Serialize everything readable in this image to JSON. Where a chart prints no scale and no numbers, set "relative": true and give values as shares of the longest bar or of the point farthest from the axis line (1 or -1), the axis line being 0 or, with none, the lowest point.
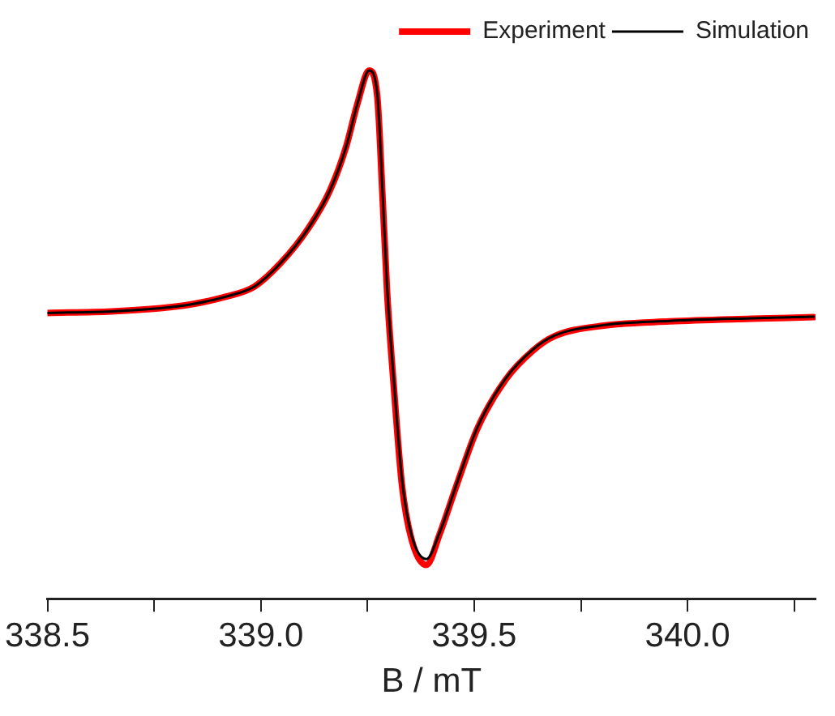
{
  "chart_data": {
    "type": "line",
    "xlabel": "B / mT",
    "relative": true,
    "legend": "top right",
    "grid": false,
    "marker": "none",
    "line_style": "solid",
    "xlim": [
      338.5,
      340.3
    ],
    "xticks": [
      338.5,
      {
        "value": 338.75,
        "label": null
      },
      {
        "value": 339,
        "label": "339.0"
      },
      {
        "value": 339.25,
        "label": null
      },
      339.5,
      {
        "value": 339.75,
        "label": null
      },
      {
        "value": 340,
        "label": "340.0"
      },
      {
        "value": 340.25,
        "label": null
      }
    ],
    "x": [
      338.5,
      338.65,
      338.765,
      338.842,
      338.919,
      338.985,
      339.046,
      339.112,
      339.162,
      339.2,
      339.227,
      339.254,
      339.273,
      339.285,
      339.296,
      339.312,
      339.331,
      339.354,
      339.388,
      339.419,
      339.458,
      339.508,
      339.573,
      339.638,
      339.688,
      339.804,
      339.958,
      340.15,
      340.296
    ],
    "series": [
      {
        "name": "Experiment",
        "color": "#ff0000",
        "values": [
          0.541,
          0.544,
          0.55,
          0.558,
          0.572,
          0.591,
          0.635,
          0.702,
          0.773,
          0.856,
          0.939,
          1,
          0.95,
          0.765,
          0.58,
          0.398,
          0.213,
          0.11,
          0.064,
          0.122,
          0.213,
          0.323,
          0.414,
          0.47,
          0.497,
          0.517,
          0.525,
          0.53,
          0.533
        ]
      },
      {
        "name": "Simulation",
        "color": "#000000",
        "values": [
          0.541,
          0.544,
          0.55,
          0.558,
          0.572,
          0.591,
          0.635,
          0.702,
          0.773,
          0.856,
          0.939,
          1,
          0.955,
          0.775,
          0.59,
          0.41,
          0.225,
          0.118,
          0.075,
          0.125,
          0.215,
          0.325,
          0.416,
          0.472,
          0.498,
          0.518,
          0.526,
          0.531,
          0.534
        ]
      }
    ]
  }
}
